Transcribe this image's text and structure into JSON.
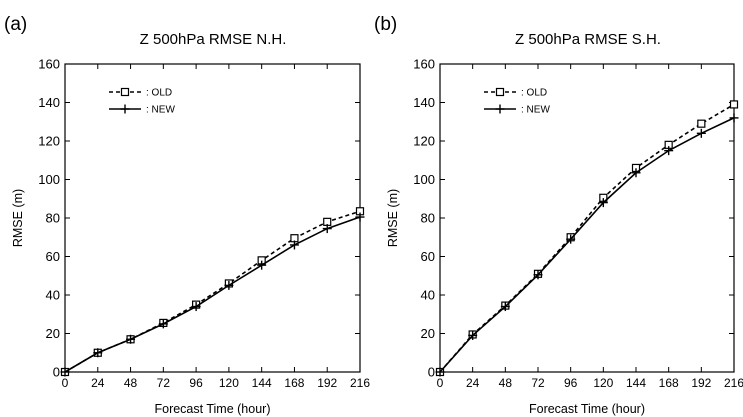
{
  "panels": [
    {
      "label": "(a)"
    },
    {
      "label": "(b)"
    }
  ],
  "chart_data": [
    {
      "type": "line",
      "title": "Z 500hPa RMSE N.H.",
      "xlabel": "Forecast Time (hour)",
      "ylabel": "RMSE (m)",
      "x": [
        0,
        24,
        48,
        72,
        96,
        120,
        144,
        168,
        192,
        216
      ],
      "xlim": [
        0,
        216
      ],
      "ylim": [
        0,
        160
      ],
      "xticks": [
        0,
        24,
        48,
        72,
        96,
        120,
        144,
        168,
        192,
        216
      ],
      "yticks": [
        0,
        20,
        40,
        60,
        80,
        100,
        120,
        140,
        160
      ],
      "grid": false,
      "legend_position": "top-left",
      "series": [
        {
          "name": ": OLD",
          "style": "dashed",
          "marker": "square",
          "values": [
            0,
            10,
            17,
            25.5,
            35,
            46,
            58,
            69.5,
            78,
            83.5
          ]
        },
        {
          "name": ": NEW",
          "style": "solid",
          "marker": "plus",
          "values": [
            0,
            10,
            17,
            25,
            34,
            45,
            55.5,
            66,
            74.5,
            80.5
          ]
        }
      ]
    },
    {
      "type": "line",
      "title": "Z 500hPa RMSE S.H.",
      "xlabel": "Forecast Time (hour)",
      "ylabel": "RMSE (m)",
      "x": [
        0,
        24,
        48,
        72,
        96,
        120,
        144,
        168,
        192,
        216
      ],
      "xlim": [
        0,
        216
      ],
      "ylim": [
        0,
        160
      ],
      "xticks": [
        0,
        24,
        48,
        72,
        96,
        120,
        144,
        168,
        192,
        216
      ],
      "yticks": [
        0,
        20,
        40,
        60,
        80,
        100,
        120,
        140,
        160
      ],
      "grid": false,
      "legend_position": "top-left",
      "series": [
        {
          "name": ": OLD",
          "style": "dashed",
          "marker": "square",
          "values": [
            0,
            19.5,
            34.5,
            51,
            70,
            90.5,
            106,
            118,
            129,
            139
          ]
        },
        {
          "name": ": NEW",
          "style": "solid",
          "marker": "plus",
          "values": [
            0,
            19,
            34,
            50.5,
            69,
            88,
            103.5,
            115,
            124,
            132
          ]
        }
      ]
    }
  ]
}
